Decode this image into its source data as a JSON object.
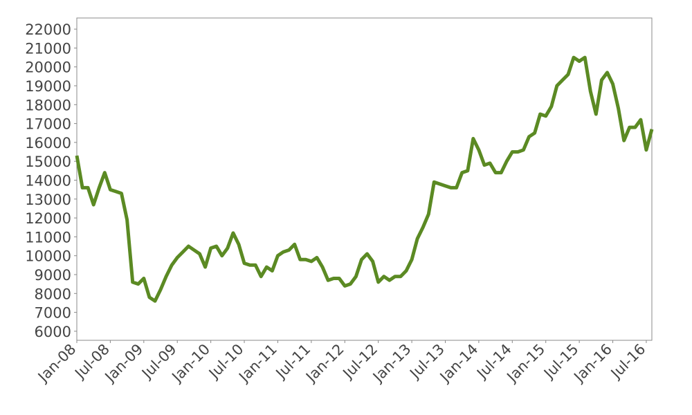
{
  "chart_data": {
    "type": "line",
    "x": [
      "2008-01",
      "2008-02",
      "2008-03",
      "2008-04",
      "2008-05",
      "2008-06",
      "2008-07",
      "2008-08",
      "2008-09",
      "2008-10",
      "2008-11",
      "2008-12",
      "2009-01",
      "2009-02",
      "2009-03",
      "2009-04",
      "2009-05",
      "2009-06",
      "2009-07",
      "2009-08",
      "2009-09",
      "2009-10",
      "2009-11",
      "2009-12",
      "2010-01",
      "2010-02",
      "2010-03",
      "2010-04",
      "2010-05",
      "2010-06",
      "2010-07",
      "2010-08",
      "2010-09",
      "2010-10",
      "2010-11",
      "2010-12",
      "2011-01",
      "2011-02",
      "2011-03",
      "2011-04",
      "2011-05",
      "2011-06",
      "2011-07",
      "2011-08",
      "2011-09",
      "2011-10",
      "2011-11",
      "2011-12",
      "2012-01",
      "2012-02",
      "2012-03",
      "2012-04",
      "2012-05",
      "2012-06",
      "2012-07",
      "2012-08",
      "2012-09",
      "2012-10",
      "2012-11",
      "2012-12",
      "2013-01",
      "2013-02",
      "2013-03",
      "2013-04",
      "2013-05",
      "2013-06",
      "2013-07",
      "2013-08",
      "2013-09",
      "2013-10",
      "2013-11",
      "2013-12",
      "2014-01",
      "2014-02",
      "2014-03",
      "2014-04",
      "2014-05",
      "2014-06",
      "2014-07",
      "2014-08",
      "2014-09",
      "2014-10",
      "2014-11",
      "2014-12",
      "2015-01",
      "2015-02",
      "2015-03",
      "2015-04",
      "2015-05",
      "2015-06",
      "2015-07",
      "2015-08",
      "2015-09",
      "2015-10",
      "2015-11",
      "2015-12",
      "2016-01",
      "2016-02",
      "2016-03",
      "2016-04",
      "2016-05",
      "2016-06",
      "2016-07",
      "2016-08"
    ],
    "values": [
      15300,
      13600,
      13600,
      12700,
      13600,
      14400,
      13500,
      13400,
      13300,
      11900,
      8600,
      8500,
      8800,
      7800,
      7600,
      8200,
      8900,
      9500,
      9900,
      10200,
      10500,
      10300,
      10100,
      9400,
      10400,
      10500,
      10000,
      10400,
      11200,
      10600,
      9600,
      9500,
      9500,
      8900,
      9400,
      9200,
      10000,
      10200,
      10300,
      10600,
      9800,
      9800,
      9700,
      9900,
      9400,
      8700,
      8800,
      8800,
      8400,
      8500,
      8900,
      9800,
      10100,
      9700,
      8600,
      8900,
      8700,
      8900,
      8900,
      9200,
      9800,
      10900,
      11500,
      12200,
      13900,
      13800,
      13700,
      13600,
      13600,
      14400,
      14500,
      16200,
      15600,
      14800,
      14900,
      14400,
      14400,
      15000,
      15500,
      15500,
      15600,
      16300,
      16500,
      17500,
      17400,
      17900,
      19000,
      19300,
      19600,
      20500,
      20300,
      20500,
      18700,
      17500,
      19300,
      19700,
      19100,
      17800,
      16100,
      16800,
      16800,
      17200,
      15600,
      16700
    ],
    "color": "#5b8a23",
    "xlim": [
      "2008-01",
      "2016-08"
    ],
    "xticks": [
      {
        "value": "2008-01",
        "label": "Jan-08"
      },
      {
        "value": "2008-07",
        "label": "Jul-08"
      },
      {
        "value": "2009-01",
        "label": "Jan-09"
      },
      {
        "value": "2009-07",
        "label": "Jul-09"
      },
      {
        "value": "2010-01",
        "label": "Jan-10"
      },
      {
        "value": "2010-07",
        "label": "Jul-10"
      },
      {
        "value": "2011-01",
        "label": "Jan-11"
      },
      {
        "value": "2011-07",
        "label": "Jul-11"
      },
      {
        "value": "2012-01",
        "label": "Jan-12"
      },
      {
        "value": "2012-07",
        "label": "Jul-12"
      },
      {
        "value": "2013-01",
        "label": "Jan-13"
      },
      {
        "value": "2013-07",
        "label": "Jul-13"
      },
      {
        "value": "2014-01",
        "label": "Jan-14"
      },
      {
        "value": "2014-07",
        "label": "Jul-14"
      },
      {
        "value": "2015-01",
        "label": "Jan-15"
      },
      {
        "value": "2015-07",
        "label": "Jul-15"
      },
      {
        "value": "2016-01",
        "label": "Jan-16"
      },
      {
        "value": "2016-07",
        "label": "Jul-16"
      }
    ],
    "ylim": [
      5520,
      22590
    ],
    "yticks": [
      6000,
      7000,
      8000,
      9000,
      10000,
      11000,
      12000,
      13000,
      14000,
      15000,
      16000,
      17000,
      18000,
      19000,
      20000,
      21000,
      22000
    ]
  }
}
